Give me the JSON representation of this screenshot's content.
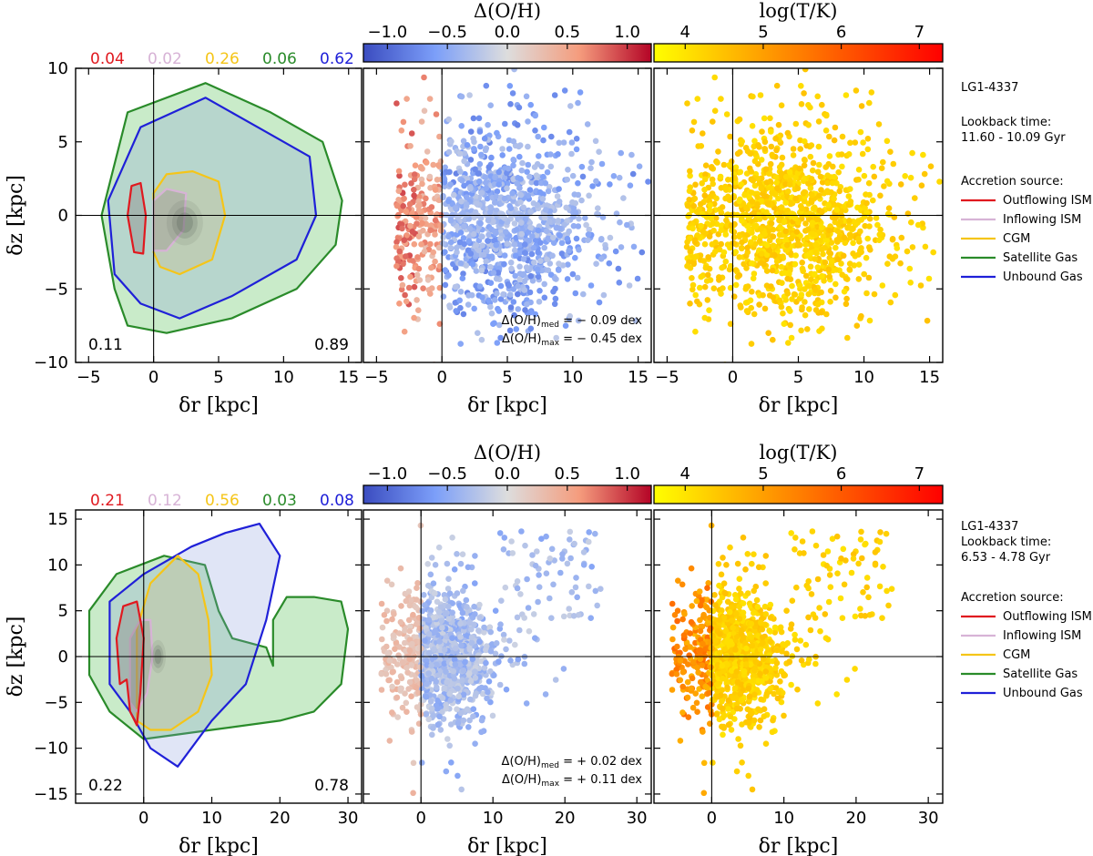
{
  "chart_data": [
    {
      "type": "scatter",
      "row": 0,
      "xlabel": "δr [kpc]",
      "ylabel": "δz [kpc]",
      "xlim_left": [
        -6,
        16
      ],
      "xlim_right": [
        -6,
        16
      ],
      "ylim": [
        -10,
        10
      ],
      "xticks": [
        -5,
        0,
        5,
        10,
        15
      ],
      "yticks": [
        -10,
        -5,
        0,
        5,
        10
      ],
      "source_fractions": [
        {
          "label": "0.04",
          "color": "#e0191f"
        },
        {
          "label": "0.02",
          "color": "#d7b3d6"
        },
        {
          "label": "0.26",
          "color": "#f5c518"
        },
        {
          "label": "0.06",
          "color": "#2a8b2a"
        },
        {
          "label": "0.62",
          "color": "#1f20d8"
        }
      ],
      "side_fractions": {
        "left": "0.11",
        "right": "0.89"
      },
      "metallicity_colorbar": {
        "label": "Δ(O/H)",
        "ticks": [
          "−1.0",
          "−0.5",
          "0.0",
          "0.5",
          "1.0"
        ],
        "range": [
          -1.2,
          1.2
        ]
      },
      "temperature_colorbar": {
        "label": "log(T/K)",
        "ticks": [
          "4",
          "5",
          "6",
          "7"
        ],
        "range": [
          3.6,
          7.3
        ]
      },
      "metallicity_stats": {
        "med_label": "Δ(O/H)",
        "med_sub": "med",
        "med_value": " = − 0.09 dex",
        "max_label": "Δ(O/H)",
        "max_sub": "max",
        "max_value": " = − 0.45 dex"
      },
      "legend": {
        "galaxy": "LG1-4337",
        "lookback_title": "Lookback time:",
        "lookback_value": "11.60 - 10.09 Gyr",
        "source_title": "Accretion source:",
        "entries": [
          {
            "label": "Outflowing ISM",
            "color": "#e0191f"
          },
          {
            "label": "Inflowing ISM",
            "color": "#d7b3d6"
          },
          {
            "label": "CGM",
            "color": "#f5c518"
          },
          {
            "label": "Satellite Gas",
            "color": "#2a8b2a"
          },
          {
            "label": "Unbound Gas",
            "color": "#1f20d8"
          }
        ]
      },
      "point_spread": {
        "cx": 4.0,
        "cz": -0.5,
        "sx": 4.0,
        "sz": 2.8,
        "n": 1300
      }
    },
    {
      "type": "scatter",
      "row": 1,
      "xlabel": "δr [kpc]",
      "ylabel": "δz [kpc]",
      "xlim_left": [
        -10,
        32
      ],
      "xlim_right": [
        -8,
        32
      ],
      "ylim": [
        -16,
        16
      ],
      "xticks": [
        0,
        10,
        20,
        30
      ],
      "yticks": [
        -15,
        -10,
        -5,
        0,
        5,
        10,
        15
      ],
      "source_fractions": [
        {
          "label": "0.21",
          "color": "#e0191f"
        },
        {
          "label": "0.12",
          "color": "#d7b3d6"
        },
        {
          "label": "0.56",
          "color": "#f5c518"
        },
        {
          "label": "0.03",
          "color": "#2a8b2a"
        },
        {
          "label": "0.08",
          "color": "#1f20d8"
        }
      ],
      "side_fractions": {
        "left": "0.22",
        "right": "0.78"
      },
      "metallicity_colorbar": {
        "label": "Δ(O/H)",
        "ticks": [
          "−1.0",
          "−0.5",
          "0.0",
          "0.5",
          "1.0"
        ],
        "range": [
          -1.2,
          1.2
        ]
      },
      "temperature_colorbar": {
        "label": "log(T/K)",
        "ticks": [
          "4",
          "5",
          "6",
          "7"
        ],
        "range": [
          3.6,
          7.3
        ]
      },
      "metallicity_stats": {
        "med_label": "Δ(O/H)",
        "med_sub": "med",
        "med_value": " = + 0.02 dex",
        "max_label": "Δ(O/H)",
        "max_sub": "max",
        "max_value": " = + 0.11 dex"
      },
      "legend": {
        "galaxy": "LG1-4337",
        "lookback_title": "Lookback time:",
        "lookback_value": "6.53 - 4.78 Gyr",
        "source_title": "Accretion source:",
        "entries": [
          {
            "label": "Outflowing ISM",
            "color": "#e0191f"
          },
          {
            "label": "Inflowing ISM",
            "color": "#d7b3d6"
          },
          {
            "label": "CGM",
            "color": "#f5c518"
          },
          {
            "label": "Satellite Gas",
            "color": "#2a8b2a"
          },
          {
            "label": "Unbound Gas",
            "color": "#1f20d8"
          }
        ]
      },
      "point_spread": {
        "cx": 3.5,
        "cz": 0.0,
        "sx": 3.3,
        "sz": 3.3,
        "n": 1100
      }
    }
  ]
}
